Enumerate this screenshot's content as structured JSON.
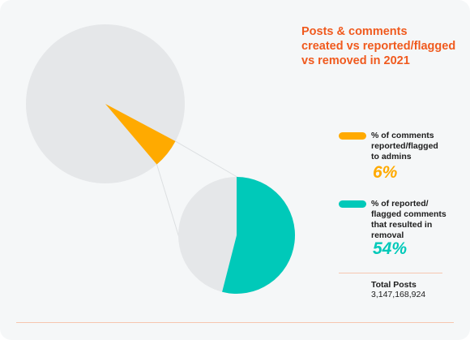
{
  "colors": {
    "orange": "#ffaa00",
    "teal": "#00c9b9",
    "grey": "#e5e7e9",
    "title": "#f05a1e"
  },
  "chart_data": [
    {
      "type": "pie",
      "title": "Posts & comments\ncreated vs reported/flagged\nvs removed in 2021",
      "slices": [
        {
          "label": "% of comments reported/flagged to admins",
          "value": 6
        },
        {
          "label": "",
          "value": 94
        }
      ]
    },
    {
      "type": "pie",
      "slices": [
        {
          "label": "% of reported/ flagged comments that resulted in removal",
          "value": 54
        },
        {
          "label": "",
          "value": 46
        }
      ]
    }
  ],
  "legend": [
    {
      "label": "% of comments\nreported/flagged\nto admins",
      "pct": "6%"
    },
    {
      "label": "% of reported/\nflagged comments\nthat resulted in\nremoval",
      "pct": "54%"
    }
  ],
  "total": {
    "label": "Total Posts",
    "value": "3,147,168,924"
  }
}
